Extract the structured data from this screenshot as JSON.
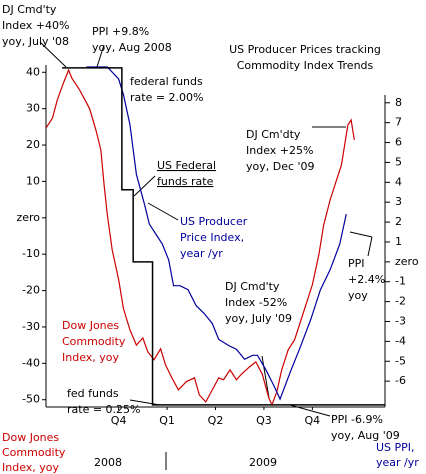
{
  "chart_data": {
    "type": "line",
    "title": [
      "US Producer Prices tracking",
      "Commodity Index Trends"
    ],
    "xlim": [
      0,
      21
    ],
    "xticks": [
      {
        "value": 4.5,
        "label": "Q4"
      },
      {
        "value": 7.5,
        "label": "Q1"
      },
      {
        "value": 10.5,
        "label": "Q2"
      },
      {
        "value": 13.5,
        "label": "Q3"
      },
      {
        "value": 16.5,
        "label": "Q4"
      }
    ],
    "year_labels": [
      "2008",
      "2009"
    ],
    "ylim": [
      -52,
      42
    ],
    "yticks": [
      40,
      30,
      20,
      10,
      {
        "value": 0,
        "label": "zero"
      },
      -10,
      -20,
      -30,
      -40,
      -50
    ],
    "y2lim": [
      -7.3,
      9.9
    ],
    "y2ticks": [
      8,
      7,
      6,
      5,
      4,
      3,
      2,
      1,
      {
        "value": 0,
        "label": "zero"
      },
      -1,
      -2,
      -3,
      -4,
      -5,
      -6
    ],
    "ylabel": [
      "Dow Jones",
      "Commodity",
      "Index, yoy"
    ],
    "y2label": [
      "US PPI,",
      "year /yr"
    ],
    "series": [
      {
        "color": "#cc0000",
        "axis": "y",
        "x": [
          0,
          0.4,
          0.7,
          1.1,
          1.4,
          1.6,
          2.1,
          2.7,
          3.1,
          3.4,
          3.6,
          3.8,
          4.1,
          4.5,
          4.8,
          5.2,
          5.6,
          6.0,
          6.3,
          6.7,
          7.1,
          7.4,
          7.8,
          8.2,
          8.7,
          9.2,
          9.5,
          9.9,
          10.3,
          10.7,
          11.0,
          11.4,
          11.8,
          12.1,
          12.6,
          13.0,
          13.4,
          13.8,
          14.0,
          14.3,
          14.6,
          15.0,
          15.4,
          15.7,
          16.1,
          16.5,
          16.9,
          17.2,
          17.6,
          18.0,
          18.3,
          18.7,
          18.9,
          19.1
        ],
        "values": [
          24.7,
          27.4,
          32.4,
          37.3,
          40.6,
          38.4,
          35,
          30,
          24,
          18.6,
          9,
          0.8,
          -8.8,
          -17,
          -25,
          -30.8,
          -35,
          -33,
          -36.8,
          -39,
          -36,
          -40.4,
          -44,
          -47.3,
          -45,
          -44,
          -48.7,
          -50.6,
          -47.3,
          -44,
          -44.5,
          -41.8,
          -44.5,
          -43,
          -41,
          -39.6,
          -43,
          -49.5,
          -51.4,
          -47.8,
          -41.8,
          -36.3,
          -33.5,
          -29.4,
          -23.9,
          -18.4,
          -10.2,
          -2,
          4.9,
          10.4,
          14.5,
          25.5,
          26.9,
          21.4
        ]
      },
      {
        "color": "#00009c",
        "axis": "y2",
        "x": [
          2.5,
          3.8,
          4.5,
          4.8,
          5.2,
          5.6,
          6.1,
          6.4,
          6.8,
          7.2,
          7.6,
          7.9,
          8.3,
          8.8,
          9.3,
          9.8,
          10.3,
          10.7,
          11.3,
          11.8,
          12.3,
          12.8,
          13.1,
          13.6,
          14.1,
          14.5,
          15.2,
          15.7,
          16.4,
          17.0,
          17.6,
          18.2,
          18.6
        ],
        "values": [
          9.8,
          9.8,
          9.2,
          8.4,
          6.9,
          4.4,
          2.9,
          1.9,
          1.4,
          0.9,
          0.1,
          -1.2,
          -1.2,
          -1.4,
          -2.2,
          -2.6,
          -3.1,
          -3.9,
          -4.2,
          -4.4,
          -4.9,
          -4.7,
          -4.7,
          -5.4,
          -6.2,
          -6.9,
          -5.4,
          -4.4,
          -2.9,
          -1.4,
          -0.4,
          0.9,
          2.4
        ]
      },
      {
        "color": "#000000",
        "axis": "y",
        "step": true,
        "x": [
          1.0,
          4.7,
          5.4,
          6.6,
          21
        ],
        "values": [
          41.2,
          7.7,
          -12.1,
          -51.4,
          -51.4
        ]
      }
    ],
    "annotations": [
      {
        "color": "#000000",
        "lines": [
          "DJ Cmd'ty",
          "Index +40%",
          "yoy, July '08"
        ]
      },
      {
        "color": "#000000",
        "lines": [
          "PPI +9.8%",
          "yoy, Aug 2008"
        ]
      },
      {
        "color": "#000000",
        "lines": [
          "federal funds",
          "rate = 2.00%"
        ]
      },
      {
        "color": "#000000",
        "underline": true,
        "lines": [
          "US Federal",
          "funds rate"
        ]
      },
      {
        "color": "#00009c",
        "lines": [
          "US Producer",
          "Price Index,",
          "year /yr"
        ]
      },
      {
        "color": "#000000",
        "lines": [
          "DJ Cm'dty",
          "Index +25%",
          "yoy, Dec '09"
        ]
      },
      {
        "color": "#000000",
        "lines": [
          "DJ Cmd'ty",
          "Index -52%",
          "yoy, July '09"
        ]
      },
      {
        "color": "#000000",
        "lines": [
          "PPI",
          "+2.4%",
          "yoy"
        ]
      },
      {
        "color": "#cc0000",
        "lines": [
          "Dow Jones",
          "Commodity",
          "Index, yoy"
        ]
      },
      {
        "color": "#000000",
        "lines": [
          "fed funds",
          "rate = 0.25%"
        ]
      },
      {
        "color": "#000000",
        "lines": [
          "PPI -6.9%",
          "yoy, Aug '09"
        ]
      }
    ]
  }
}
